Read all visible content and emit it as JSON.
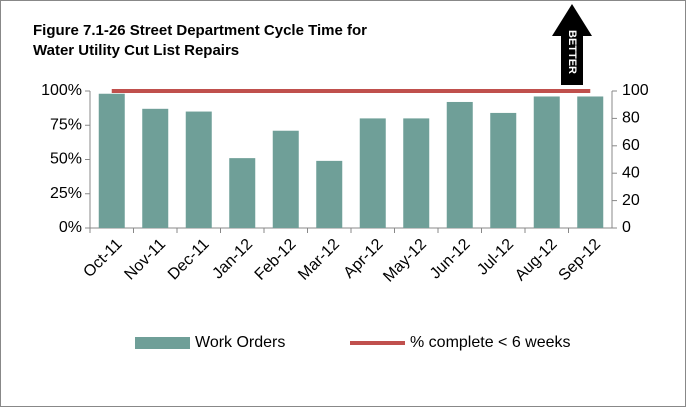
{
  "chart_data": {
    "type": "bar",
    "title": [
      "Figure 7.1-26 Street Department Cycle Time for",
      "Water Utility Cut List Repairs"
    ],
    "badge": "BETTER",
    "categories": [
      "Oct-11",
      "Nov-11",
      "Dec-11",
      "Jan-12",
      "Feb-12",
      "Mar-12",
      "Apr-12",
      "May-12",
      "Jun-12",
      "Jul-12",
      "Aug-12",
      "Sep-12"
    ],
    "series": [
      {
        "name": "Work Orders",
        "type": "bar",
        "axis": "y2",
        "color": "#6f9f98",
        "values": [
          98,
          87,
          85,
          51,
          71,
          49,
          80,
          80,
          92,
          84,
          96,
          96
        ]
      },
      {
        "name": "% complete < 6 weeks",
        "type": "line",
        "axis": "y",
        "color": "#c0504d",
        "values": [
          100,
          100,
          100,
          100,
          100,
          100,
          100,
          100,
          100,
          100,
          100,
          100
        ]
      }
    ],
    "ylim": [
      0,
      100
    ],
    "yticks": [
      {
        "value": 0,
        "label": "0%"
      },
      {
        "value": 25,
        "label": "25%"
      },
      {
        "value": 50,
        "label": "50%"
      },
      {
        "value": 75,
        "label": "75%"
      },
      {
        "value": 100,
        "label": "100%"
      }
    ],
    "y2lim": [
      0,
      100
    ],
    "y2ticks": [
      0,
      20,
      40,
      60,
      80,
      100
    ],
    "legend": "bottom"
  }
}
